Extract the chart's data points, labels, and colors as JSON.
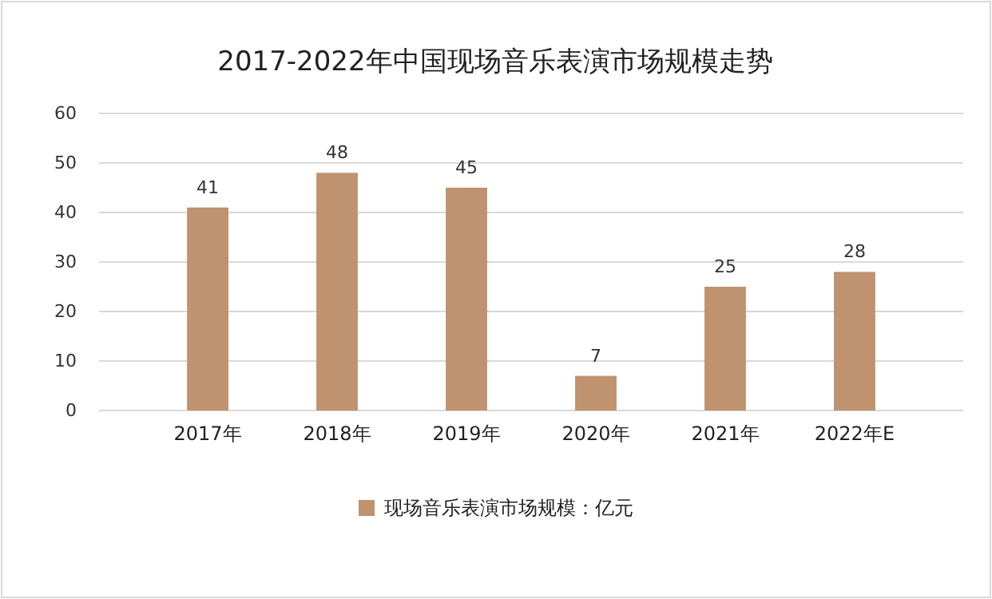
{
  "chart_data": {
    "type": "bar",
    "title": "2017-2022年中国现场音乐表演市场规模走势",
    "categories": [
      "2017年",
      "2018年",
      "2019年",
      "2020年",
      "2021年",
      "2022年E"
    ],
    "series": [
      {
        "name": "现场音乐表演市场规模：亿元",
        "color": "#bf9270",
        "values": [
          41,
          48,
          45,
          7,
          25,
          28
        ]
      }
    ],
    "ylim": [
      0,
      60
    ],
    "yticks": [
      0,
      10,
      20,
      30,
      40,
      50,
      60
    ],
    "grid": "y",
    "legend": "bottom",
    "data_labels": true
  }
}
